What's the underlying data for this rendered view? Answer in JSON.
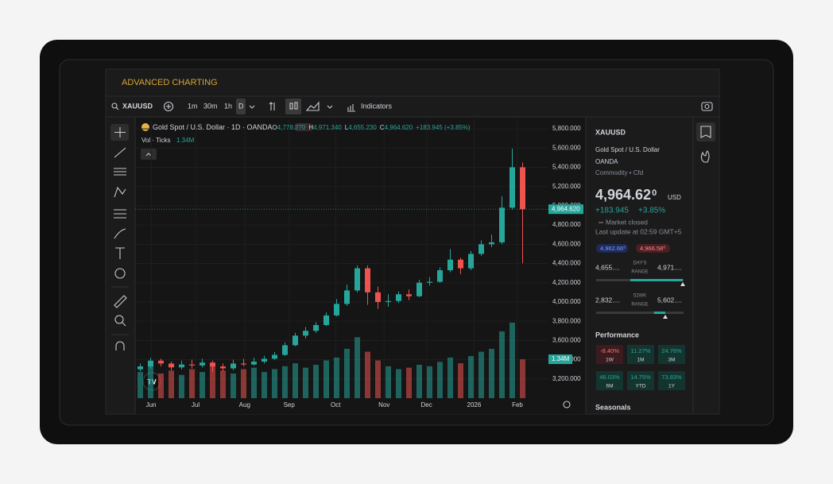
{
  "header": {
    "title": "ADVANCED CHARTING"
  },
  "toolbar": {
    "symbol": "XAUUSD",
    "intervals": [
      "1m",
      "30m",
      "1h",
      "D"
    ],
    "indicators": "Indicators"
  },
  "chart_data": {
    "type": "candlestick",
    "legend": {
      "name": "Gold Spot / U.S. Dollar · 1D · OANDA",
      "ohlc": [
        {
          "k": "O",
          "v": "4,778.270"
        },
        {
          "k": "H",
          "v": "4,971.340"
        },
        {
          "k": "L",
          "v": "4,655.230"
        },
        {
          "k": "C",
          "v": "4,964.620"
        }
      ],
      "change": "+183.945 (+3.85%)",
      "volume_name": "Vol · Ticks",
      "volume_value": "1.34M"
    },
    "open": [
      3300,
      3330,
      3390,
      3360,
      3320,
      3350,
      3340,
      3370,
      3330,
      3310,
      3360,
      3350,
      3380,
      3410,
      3450,
      3550,
      3650,
      3700,
      3760,
      3860,
      3980,
      4120,
      4350,
      4100,
      4000,
      4010,
      4080,
      4060,
      4200,
      4210,
      4330,
      4440,
      4350,
      4500,
      4600,
      4620,
      4980,
      5400
    ],
    "high": [
      3360,
      3420,
      3410,
      3380,
      3390,
      3400,
      3410,
      3390,
      3360,
      3400,
      3410,
      3420,
      3440,
      3480,
      3580,
      3680,
      3740,
      3790,
      3890,
      4030,
      4180,
      4380,
      4380,
      4160,
      4080,
      4110,
      4130,
      4230,
      4260,
      4360,
      4550,
      4460,
      4530,
      4640,
      4700,
      5100,
      5595,
      5450
    ],
    "low": [
      3280,
      3310,
      3330,
      3290,
      3300,
      3310,
      3320,
      3270,
      3280,
      3290,
      3330,
      3340,
      3360,
      3400,
      3440,
      3540,
      3620,
      3680,
      3750,
      3850,
      3960,
      4100,
      3970,
      3930,
      3950,
      3990,
      4020,
      4050,
      4170,
      4200,
      4310,
      4290,
      4330,
      4480,
      4570,
      4600,
      4960,
      4402
    ],
    "close": [
      3330,
      3390,
      3360,
      3320,
      3350,
      3340,
      3370,
      3330,
      3310,
      3360,
      3350,
      3380,
      3410,
      3450,
      3550,
      3650,
      3700,
      3760,
      3860,
      3980,
      4120,
      4350,
      4100,
      4000,
      4010,
      4080,
      4060,
      4200,
      4210,
      4330,
      4440,
      4350,
      4500,
      4600,
      4620,
      4980,
      5400,
      4964.62
    ],
    "volume": [
      900000,
      1100000,
      850000,
      950000,
      800000,
      1000000,
      900000,
      1150000,
      950000,
      850000,
      1000000,
      1050000,
      900000,
      1000000,
      1100000,
      1200000,
      1050000,
      1150000,
      1300000,
      1400000,
      1700000,
      2100000,
      1600000,
      1300000,
      1100000,
      1000000,
      1050000,
      1150000,
      1100000,
      1250000,
      1400000,
      1200000,
      1450000,
      1600000,
      1700000,
      2300000,
      2600000,
      1340000
    ],
    "up_color": "#26a69a",
    "down_color": "#ef5350",
    "xlim": [
      -0.5,
      39.5
    ],
    "xticks": [
      {
        "value": 1.04,
        "label": "Jun"
      },
      {
        "value": 5.35,
        "label": "Jul"
      },
      {
        "value": 10.1,
        "label": "Aug"
      },
      {
        "value": 14.4,
        "label": "Sep"
      },
      {
        "value": 18.9,
        "label": "Oct"
      },
      {
        "value": 23.6,
        "label": "Nov"
      },
      {
        "value": 27.7,
        "label": "Dec"
      },
      {
        "value": 32.3,
        "label": "2026"
      },
      {
        "value": 36.5,
        "label": "Feb"
      }
    ],
    "ylim": [
      3000,
      5900
    ],
    "yticks": [
      {
        "value": 3200,
        "label": "3,200.000"
      },
      {
        "value": 3400,
        "label": "3,400.000"
      },
      {
        "value": 3600,
        "label": "3,600.000"
      },
      {
        "value": 3800,
        "label": "3,800.000"
      },
      {
        "value": 4000,
        "label": "4,000.000"
      },
      {
        "value": 4200,
        "label": "4,200.000"
      },
      {
        "value": 4400,
        "label": "4,400.000"
      },
      {
        "value": 4600,
        "label": "4,600.000"
      },
      {
        "value": 4800,
        "label": "4,800.000"
      },
      {
        "value": 5000,
        "label": "5,000.000"
      },
      {
        "value": 5200,
        "label": "5,200.000"
      },
      {
        "value": 5400,
        "label": "5,400.000"
      },
      {
        "value": 5600,
        "label": "5,600.000"
      },
      {
        "value": 5800,
        "label": "5,800.000"
      }
    ],
    "last_price": {
      "value": 4964.62,
      "label": "4,964.620"
    },
    "last_volume": {
      "value": 1340000,
      "label": "1.34M"
    },
    "grid": true
  },
  "sidebar": {
    "symbol": "XAUUSD",
    "name": "Gold Spot / U.S. Dollar",
    "exchange": "OANDA",
    "kind": "Commodity • Cfd",
    "price": "4,964.62",
    "price_sup": "0",
    "currency": "USD",
    "change": "+183.945",
    "change_pct": "+3.85%",
    "status": "Market closed",
    "updated": "Last update at 02:59 GMT+5",
    "bid": "4,962.66⁰",
    "ask": "4,966.58⁰",
    "day_range": {
      "low": "4,655....",
      "label": [
        "DAY'S",
        "RANGE"
      ],
      "high": "4,971...."
    },
    "wk52_range": {
      "low": "2,832....",
      "label": [
        "52WK",
        "RANGE"
      ],
      "high": "5,602...."
    },
    "performance_title": "Performance",
    "performance": [
      {
        "value": "-8.40%",
        "period": "1W"
      },
      {
        "value": "11.27%",
        "period": "1M"
      },
      {
        "value": "24.76%",
        "period": "3M"
      },
      {
        "value": "46.03%",
        "period": "6M"
      },
      {
        "value": "14.75%",
        "period": "YTD"
      },
      {
        "value": "73.83%",
        "period": "1Y"
      }
    ],
    "seasonals": "Seasonals"
  }
}
